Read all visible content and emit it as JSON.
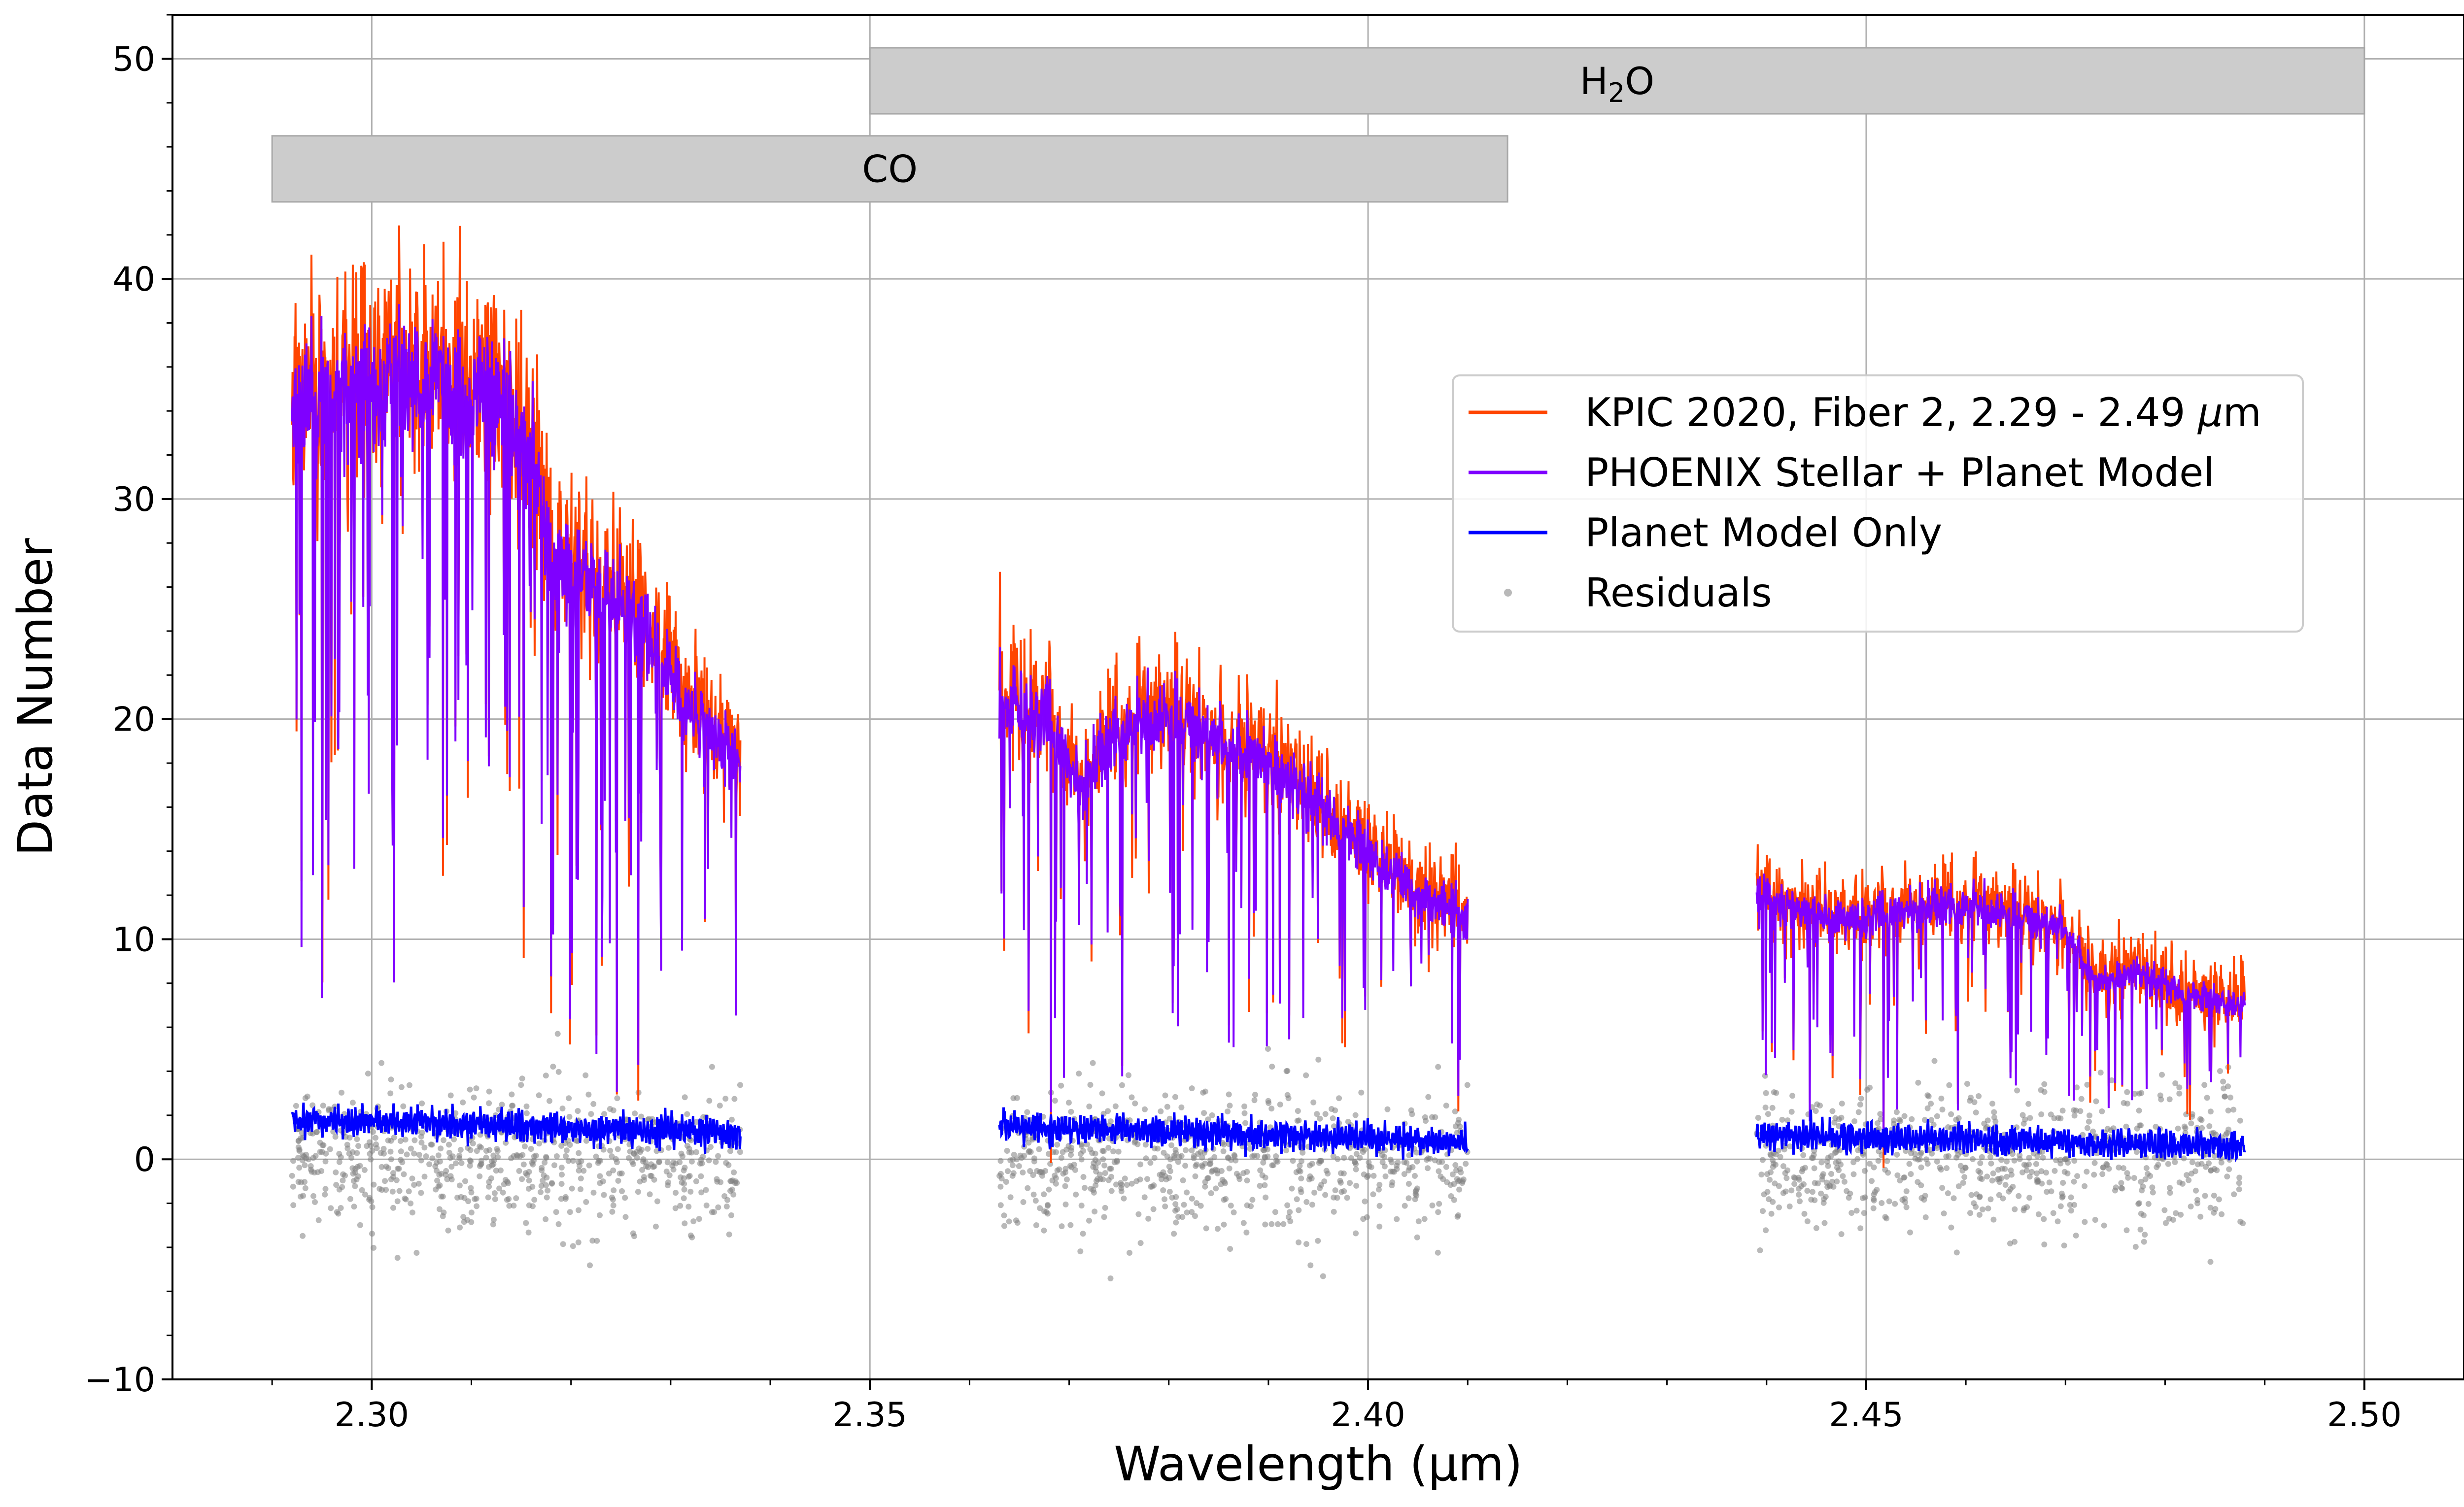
{
  "chart_data": {
    "type": "line",
    "xlabel": "Wavelength (μm)",
    "ylabel": "Data Number",
    "xlim": [
      2.28,
      2.51
    ],
    "ylim": [
      -10,
      52
    ],
    "xticks": [
      2.3,
      2.35,
      2.4,
      2.45,
      2.5
    ],
    "xtick_labels": [
      "2.30",
      "2.35",
      "2.40",
      "2.45",
      "2.50"
    ],
    "yticks": [
      -10,
      0,
      10,
      20,
      30,
      40,
      50
    ],
    "ytick_labels": [
      "−10",
      "0",
      "10",
      "20",
      "30",
      "40",
      "50"
    ],
    "grid": true,
    "legend_position": "upper-right",
    "bands": [
      {
        "name": "CO",
        "label_main": "CO",
        "label_sub": "",
        "label_tail": "",
        "x_start": 2.29,
        "x_end": 2.414,
        "y_low": 43.5,
        "y_high": 46.5,
        "color": "#cccccc"
      },
      {
        "name": "H2O",
        "label_main": "H",
        "label_sub": "2",
        "label_tail": "O",
        "x_start": 2.35,
        "x_end": 2.5,
        "y_low": 47.5,
        "y_high": 50.5,
        "color": "#cccccc"
      }
    ],
    "segments": [
      {
        "x_start": 2.292,
        "x_end": 2.337,
        "anchors": [
          [
            2.292,
            34
          ],
          [
            2.3,
            35
          ],
          [
            2.306,
            35
          ],
          [
            2.312,
            34.5
          ],
          [
            2.316,
            32
          ],
          [
            2.318,
            27
          ],
          [
            2.322,
            26.5
          ],
          [
            2.327,
            24
          ],
          [
            2.331,
            21
          ],
          [
            2.337,
            18
          ]
        ]
      },
      {
        "x_start": 2.363,
        "x_end": 2.41,
        "anchors": [
          [
            2.363,
            21
          ],
          [
            2.368,
            20
          ],
          [
            2.371,
            17
          ],
          [
            2.375,
            19.5
          ],
          [
            2.38,
            20
          ],
          [
            2.385,
            19
          ],
          [
            2.39,
            18
          ],
          [
            2.395,
            16
          ],
          [
            2.4,
            14
          ],
          [
            2.405,
            12
          ],
          [
            2.41,
            11
          ]
        ]
      },
      {
        "x_start": 2.439,
        "x_end": 2.488,
        "anchors": [
          [
            2.439,
            12
          ],
          [
            2.445,
            11
          ],
          [
            2.45,
            11
          ],
          [
            2.455,
            11.5
          ],
          [
            2.46,
            11.5
          ],
          [
            2.465,
            11
          ],
          [
            2.47,
            10.5
          ],
          [
            2.473,
            8
          ],
          [
            2.477,
            8.5
          ],
          [
            2.482,
            7.5
          ],
          [
            2.488,
            7
          ]
        ]
      }
    ],
    "planet_level": [
      [
        2.292,
        1.8
      ],
      [
        2.337,
        1.2
      ],
      [
        2.363,
        1.5
      ],
      [
        2.41,
        0.8
      ],
      [
        2.439,
        1.1
      ],
      [
        2.488,
        0.6
      ]
    ],
    "residual_sigma": 1.6,
    "series": [
      {
        "name": "KPIC 2020, Fiber 2, 2.29 - 2.49 μm",
        "label_prefix": "KPIC 2020, Fiber 2, 2.29 - 2.49 ",
        "label_mu": "μ",
        "label_suffix": "m",
        "color": "#ff4500",
        "kind": "line"
      },
      {
        "name": "PHOENIX Stellar + Planet Model",
        "label_prefix": "PHOENIX Stellar + Planet Model",
        "label_mu": "",
        "label_suffix": "",
        "color": "#7f00ff",
        "kind": "line"
      },
      {
        "name": "Planet Model Only",
        "label_prefix": "Planet Model Only",
        "label_mu": "",
        "label_suffix": "",
        "color": "#0000ff",
        "kind": "line"
      },
      {
        "name": "Residuals",
        "label_prefix": "Residuals",
        "label_mu": "",
        "label_suffix": "",
        "color": "#808080",
        "kind": "scatter"
      }
    ]
  }
}
